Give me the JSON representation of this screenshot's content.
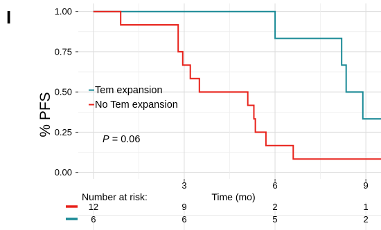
{
  "panel_label": "I",
  "chart_data": {
    "type": "line",
    "subtype": "kaplan-meier step",
    "ylabel": "% PFS",
    "xlabel": "Time (mo)",
    "x_ticks": [
      3,
      6,
      9
    ],
    "y_ticks": [
      "0.00",
      "0.25",
      "0.50",
      "0.75",
      "1.00"
    ],
    "xlim": [
      -0.5,
      9.5
    ],
    "ylim": [
      -0.04,
      1.05
    ],
    "grid": true,
    "annotation": {
      "prefix": "P",
      "text": " = 0.06"
    },
    "legend_position": "center-left",
    "series": [
      {
        "name": "Tem expansion",
        "color": "#1a8a96",
        "points": [
          [
            0,
            1.0
          ],
          [
            6.0,
            1.0
          ],
          [
            6.0,
            0.833
          ],
          [
            8.2,
            0.833
          ],
          [
            8.2,
            0.667
          ],
          [
            8.35,
            0.667
          ],
          [
            8.35,
            0.5
          ],
          [
            8.9,
            0.5
          ],
          [
            8.9,
            0.333
          ],
          [
            9.5,
            0.333
          ]
        ]
      },
      {
        "name": "No Tem expansion",
        "color": "#e8221b",
        "points": [
          [
            0,
            1.0
          ],
          [
            0.9,
            1.0
          ],
          [
            0.9,
            0.917
          ],
          [
            2.8,
            0.917
          ],
          [
            2.8,
            0.75
          ],
          [
            2.95,
            0.75
          ],
          [
            2.95,
            0.667
          ],
          [
            3.2,
            0.667
          ],
          [
            3.2,
            0.583
          ],
          [
            3.5,
            0.583
          ],
          [
            3.5,
            0.5
          ],
          [
            5.1,
            0.5
          ],
          [
            5.1,
            0.417
          ],
          [
            5.3,
            0.417
          ],
          [
            5.3,
            0.333
          ],
          [
            5.35,
            0.333
          ],
          [
            5.35,
            0.25
          ],
          [
            5.7,
            0.25
          ],
          [
            5.7,
            0.167
          ],
          [
            6.6,
            0.167
          ],
          [
            6.6,
            0.083
          ],
          [
            9.5,
            0.083
          ]
        ]
      }
    ],
    "risk_table": {
      "title": "Number at risk:",
      "rows": [
        {
          "color": "#e8221b",
          "values": [
            "12",
            "9",
            "2",
            "1"
          ]
        },
        {
          "color": "#1a8a96",
          "values": [
            "6",
            "6",
            "5",
            "2"
          ]
        }
      ],
      "x": [
        0,
        3,
        6,
        9
      ]
    }
  }
}
